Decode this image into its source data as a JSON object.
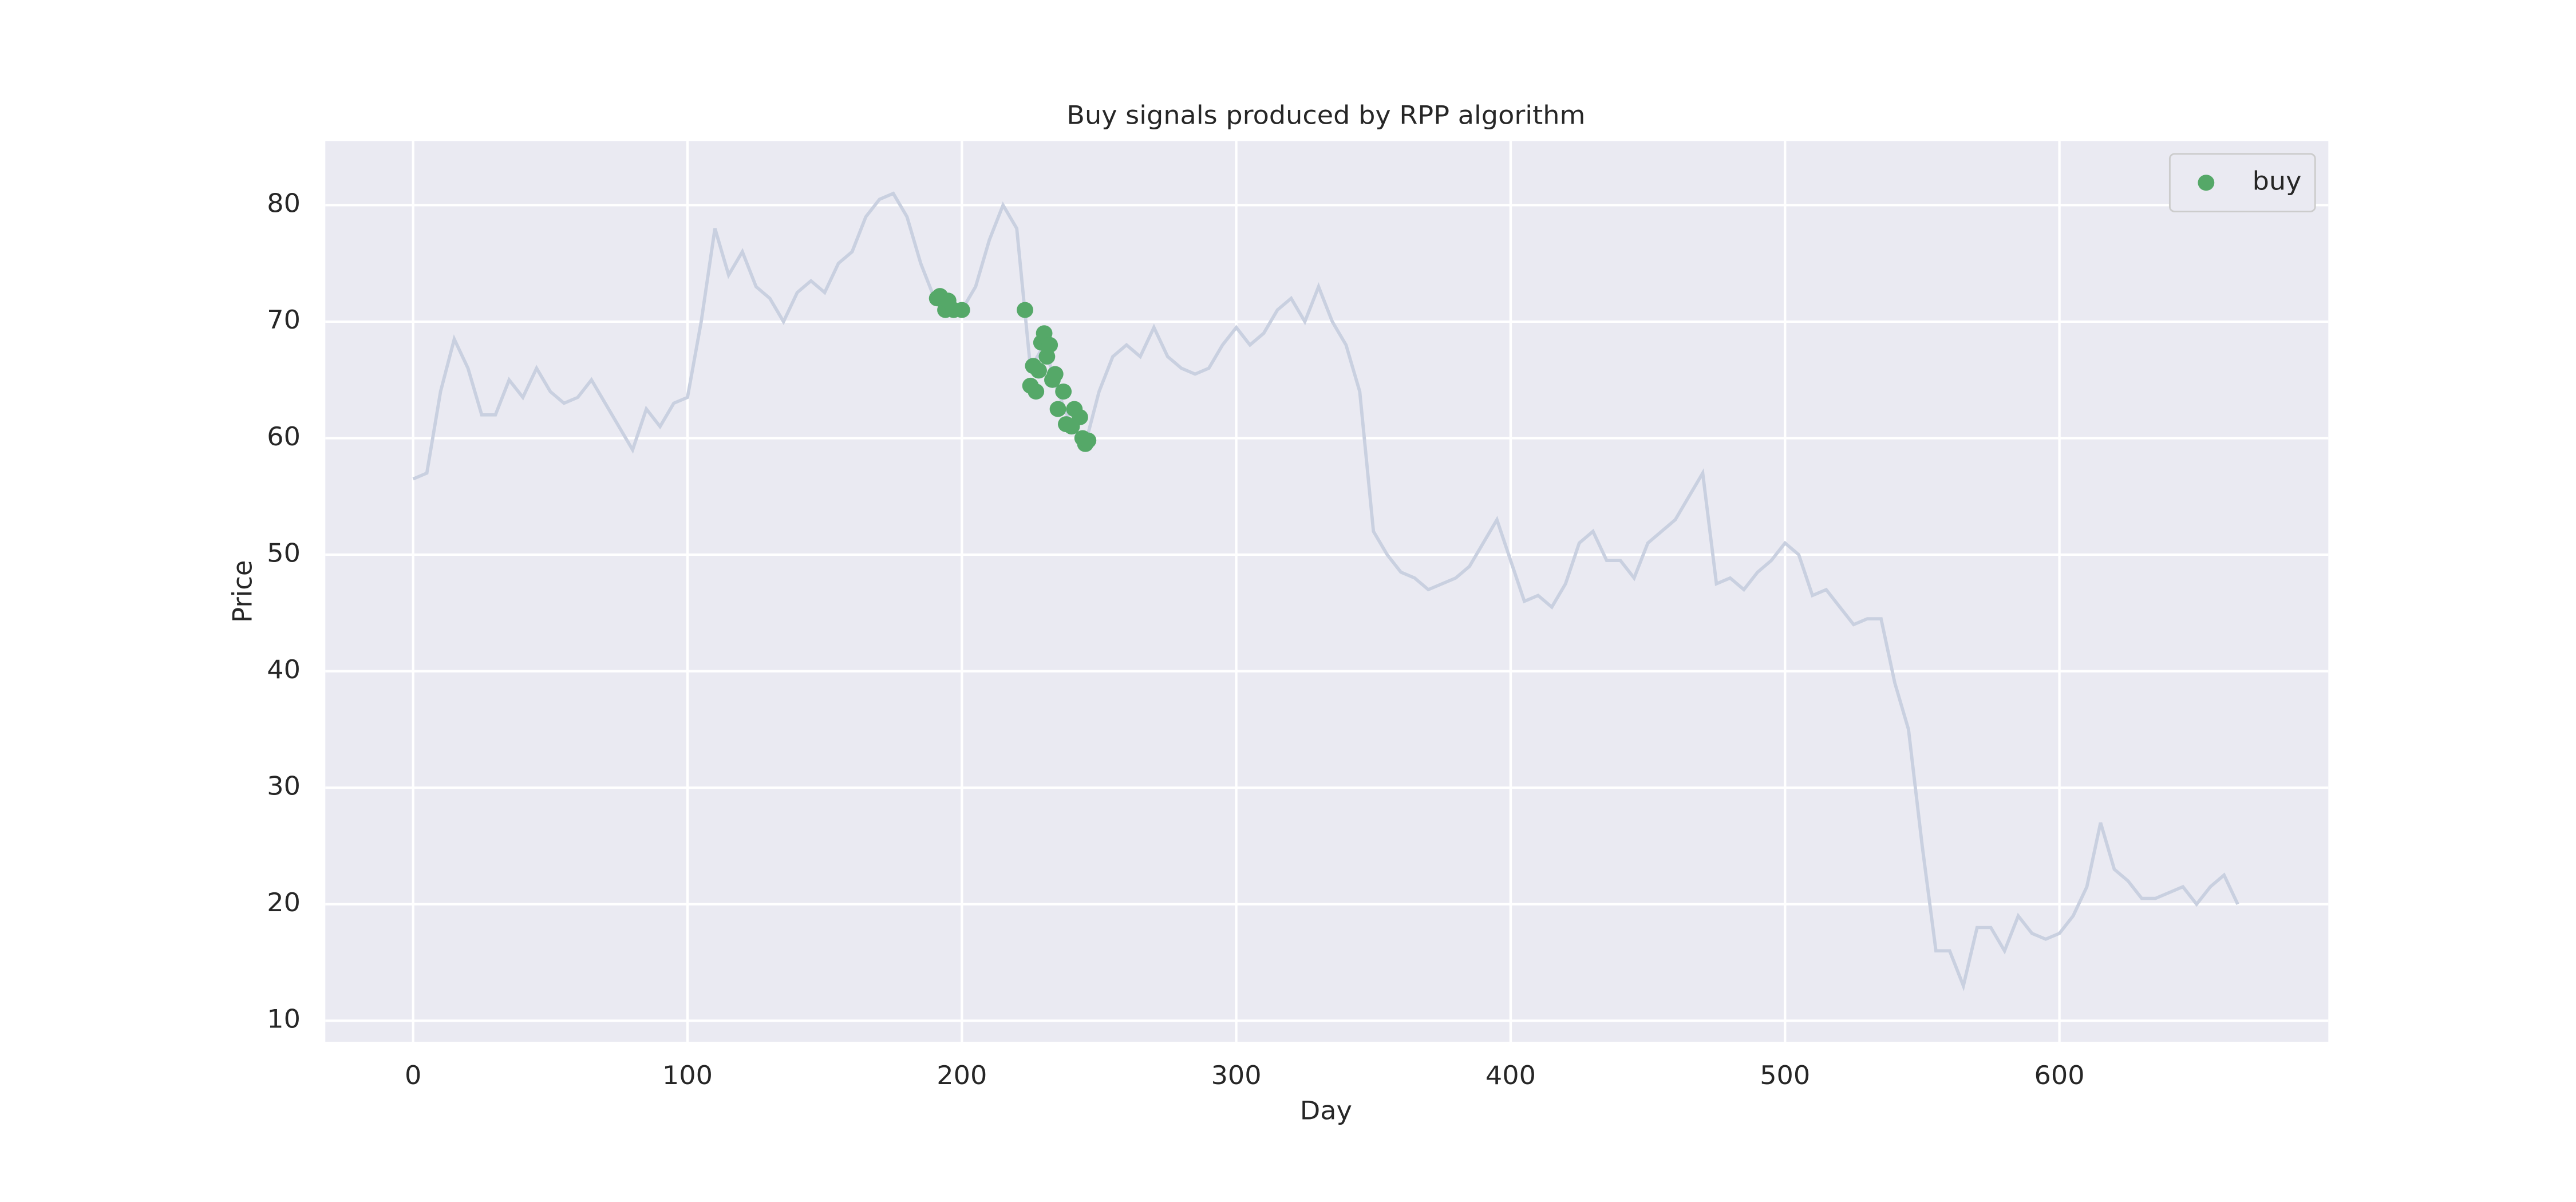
{
  "chart_data": {
    "type": "line",
    "title": "Buy signals produced by RPP algorithm",
    "x_label": "Day",
    "y_label": "Price",
    "xlim": [
      -32,
      698
    ],
    "ylim": [
      8.2,
      85.5
    ],
    "xticks": [
      0,
      100,
      200,
      300,
      400,
      500,
      600
    ],
    "yticks": [
      10,
      20,
      30,
      40,
      50,
      60,
      70,
      80
    ],
    "grid": true,
    "background": "#eaeaf2",
    "legend": "upper right",
    "series": [
      {
        "type": "line",
        "color": "#c9d0e0",
        "x": [
          0,
          5,
          10,
          15,
          20,
          25,
          30,
          35,
          40,
          45,
          50,
          55,
          60,
          65,
          70,
          75,
          80,
          85,
          90,
          95,
          100,
          105,
          110,
          115,
          120,
          125,
          130,
          135,
          140,
          145,
          150,
          155,
          160,
          165,
          170,
          175,
          180,
          185,
          190,
          195,
          200,
          205,
          210,
          215,
          220,
          225,
          230,
          235,
          240,
          245,
          250,
          255,
          260,
          265,
          270,
          275,
          280,
          285,
          290,
          295,
          300,
          305,
          310,
          315,
          320,
          325,
          330,
          335,
          340,
          345,
          350,
          355,
          360,
          365,
          370,
          375,
          380,
          385,
          390,
          395,
          400,
          405,
          410,
          415,
          420,
          425,
          430,
          435,
          440,
          445,
          450,
          455,
          460,
          465,
          470,
          475,
          480,
          485,
          490,
          495,
          500,
          505,
          510,
          515,
          520,
          525,
          530,
          535,
          540,
          545,
          550,
          555,
          560,
          565,
          570,
          575,
          580,
          585,
          590,
          595,
          600,
          605,
          610,
          615,
          620,
          625,
          630,
          635,
          640,
          645,
          650,
          655,
          660,
          665
        ],
        "values": [
          56.5,
          57,
          64,
          68.5,
          66,
          62,
          62,
          65,
          63.5,
          66,
          64,
          63,
          63.5,
          65,
          63,
          61,
          59,
          62.5,
          61,
          63,
          63.5,
          70,
          78,
          74,
          76,
          73,
          72,
          70,
          72.5,
          73.5,
          72.5,
          75,
          76,
          79,
          80.5,
          81,
          79,
          75,
          72,
          71.5,
          71,
          73,
          77,
          80,
          78,
          66,
          68,
          64,
          61,
          59.5,
          64,
          67,
          68,
          67,
          69.5,
          67,
          66,
          65.5,
          66,
          68,
          69.5,
          68,
          69,
          71,
          72,
          70,
          73,
          70,
          68,
          64,
          52,
          50,
          48.5,
          48,
          47,
          47.5,
          48,
          49,
          51,
          53,
          49.5,
          46,
          46.5,
          45.5,
          47.5,
          51,
          52,
          49.5,
          49.5,
          48,
          51,
          52,
          53,
          55,
          57,
          47.5,
          48,
          47,
          48.5,
          49.5,
          51,
          50,
          46.5,
          47,
          45.5,
          44,
          44.5,
          44.5,
          39,
          35,
          25,
          16,
          16,
          13,
          18,
          18,
          16,
          19,
          17.5,
          17,
          17.5,
          19,
          21.5,
          27,
          23,
          22,
          20.5,
          20.5,
          21,
          21.5,
          20,
          21.5,
          22.5,
          20
        ]
      },
      {
        "type": "scatter",
        "name": "buy",
        "color": "#55a868",
        "x": [
          191,
          192,
          194,
          195,
          197,
          200,
          223,
          225,
          226,
          227,
          228,
          229,
          230,
          231,
          232,
          233,
          234,
          235,
          237,
          238,
          240,
          241,
          243,
          244,
          245,
          246
        ],
        "values": [
          72,
          72.2,
          71,
          71.8,
          71,
          71,
          71,
          64.5,
          66.2,
          64,
          65.8,
          68.2,
          69,
          67,
          68,
          65,
          65.5,
          62.5,
          64,
          61.2,
          61,
          62.5,
          61.8,
          60,
          59.5,
          59.8
        ]
      }
    ]
  }
}
